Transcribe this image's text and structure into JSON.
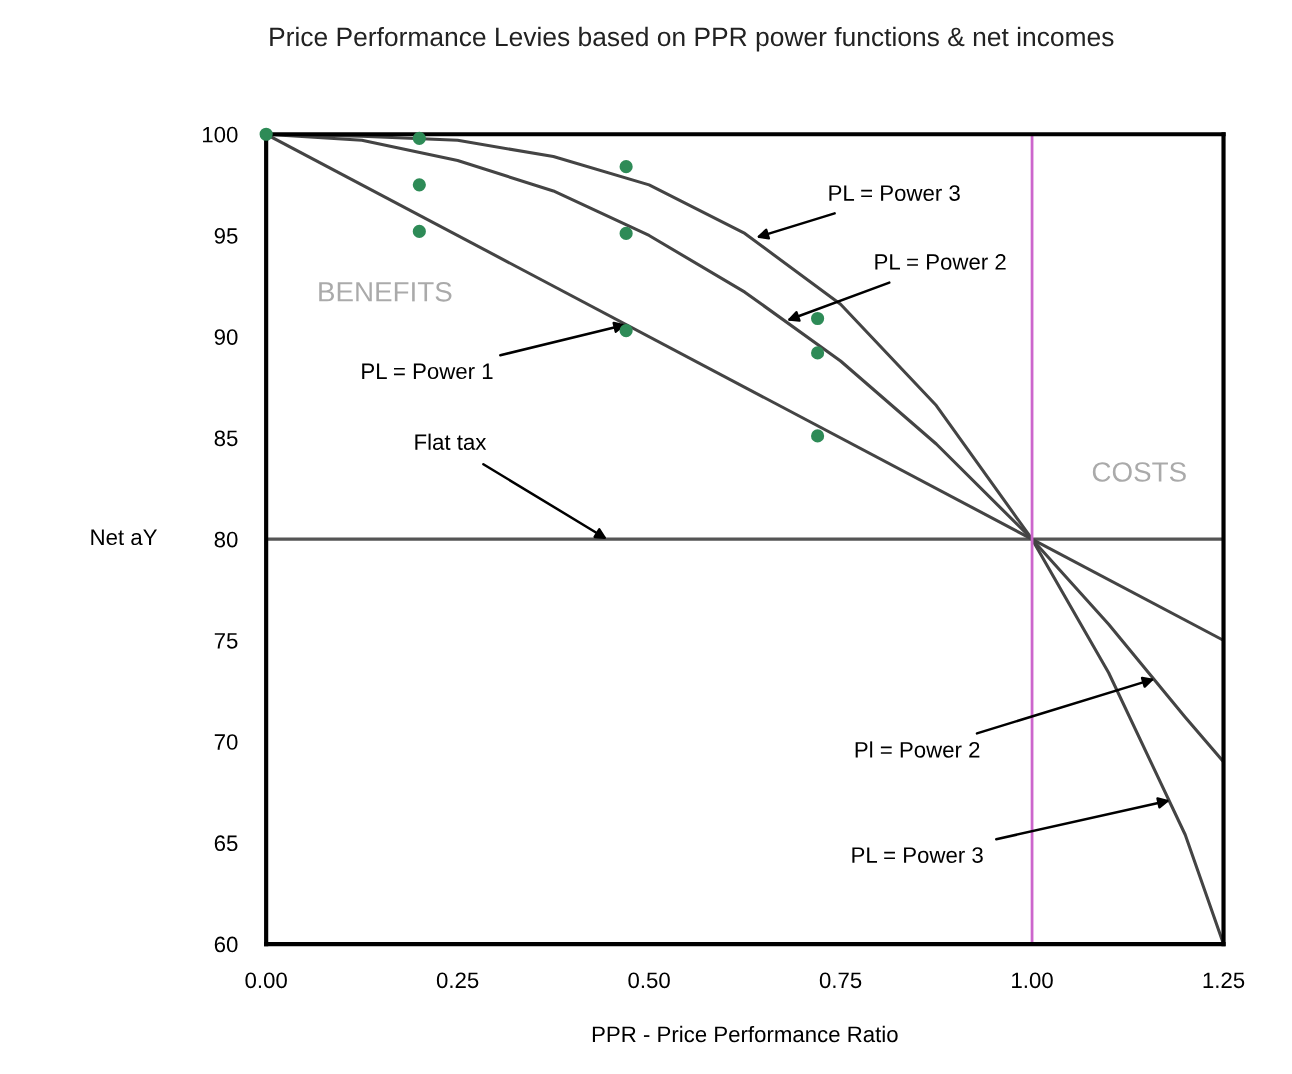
{
  "chart_data": {
    "type": "line",
    "title": "Price Performance Levies based on PPR power functions & net incomes",
    "xlabel": "PPR - Price Performance Ratio",
    "ylabel": "Net aY",
    "xlim": [
      0,
      1.25
    ],
    "ylim": [
      60,
      100
    ],
    "xticks": [
      {
        "value": 0,
        "label": "0.00"
      },
      {
        "value": 0.25,
        "label": "0.25"
      },
      {
        "value": 0.5,
        "label": "0.50"
      },
      {
        "value": 0.75,
        "label": "0.75"
      },
      {
        "value": 1,
        "label": "1.00"
      },
      {
        "value": 1.25,
        "label": "1.25"
      }
    ],
    "yticks": [
      60,
      65,
      70,
      75,
      80,
      85,
      90,
      95,
      100
    ],
    "grid": false,
    "legend": false,
    "series": [
      {
        "color": "#555555",
        "x": [
          0,
          1.25
        ],
        "values": [
          80,
          80
        ]
      },
      {
        "color": "#444444",
        "x": [
          0,
          1.25
        ],
        "values": [
          100,
          75
        ]
      },
      {
        "color": "#444444",
        "x": [
          0,
          0.125,
          0.25,
          0.375,
          0.5,
          0.625,
          0.75,
          0.875,
          1.0,
          1.1,
          1.2,
          1.25
        ],
        "values": [
          100,
          99.7,
          98.7,
          97.2,
          95,
          92.2,
          88.8,
          84.7,
          80,
          75.8,
          71.2,
          69
        ]
      },
      {
        "color": "#444444",
        "x": [
          0,
          0.125,
          0.25,
          0.375,
          0.5,
          0.625,
          0.75,
          0.875,
          1.0,
          1.1,
          1.2,
          1.25
        ],
        "values": [
          100,
          99.9,
          99.7,
          98.9,
          97.5,
          95.1,
          91.6,
          86.6,
          80,
          73.4,
          65.4,
          60
        ]
      },
      {
        "type": "scatter",
        "color": "#2e8b57",
        "marker": "circle",
        "x": [
          0,
          0.2,
          0.47,
          0.72,
          0.2,
          0.47,
          0.72,
          0.2,
          0.47,
          0.72
        ],
        "values": [
          100,
          95.2,
          90.3,
          85.1,
          97.5,
          95.1,
          89.2,
          99.8,
          98.4,
          90.9
        ]
      }
    ],
    "ref_lines": [
      {
        "axis": "x",
        "value": 1.0,
        "color": "#cc66cc"
      }
    ],
    "annotations": [
      "BENEFITS",
      "COSTS",
      {
        "text": "PL = Power 3",
        "x": 0.64,
        "y": 94.9
      },
      {
        "text": "PL = Power 2",
        "x": 0.68,
        "y": 90.8
      },
      {
        "text": "PL = Power 1",
        "x": 0.47,
        "y": 90.6
      },
      {
        "text": "Flat tax",
        "x": 0.445,
        "y": 80
      },
      {
        "text": "Pl = Power 2",
        "x": 1.16,
        "y": 73.1
      },
      {
        "text": "PL = Power 3",
        "x": 1.18,
        "y": 67.1
      }
    ]
  }
}
